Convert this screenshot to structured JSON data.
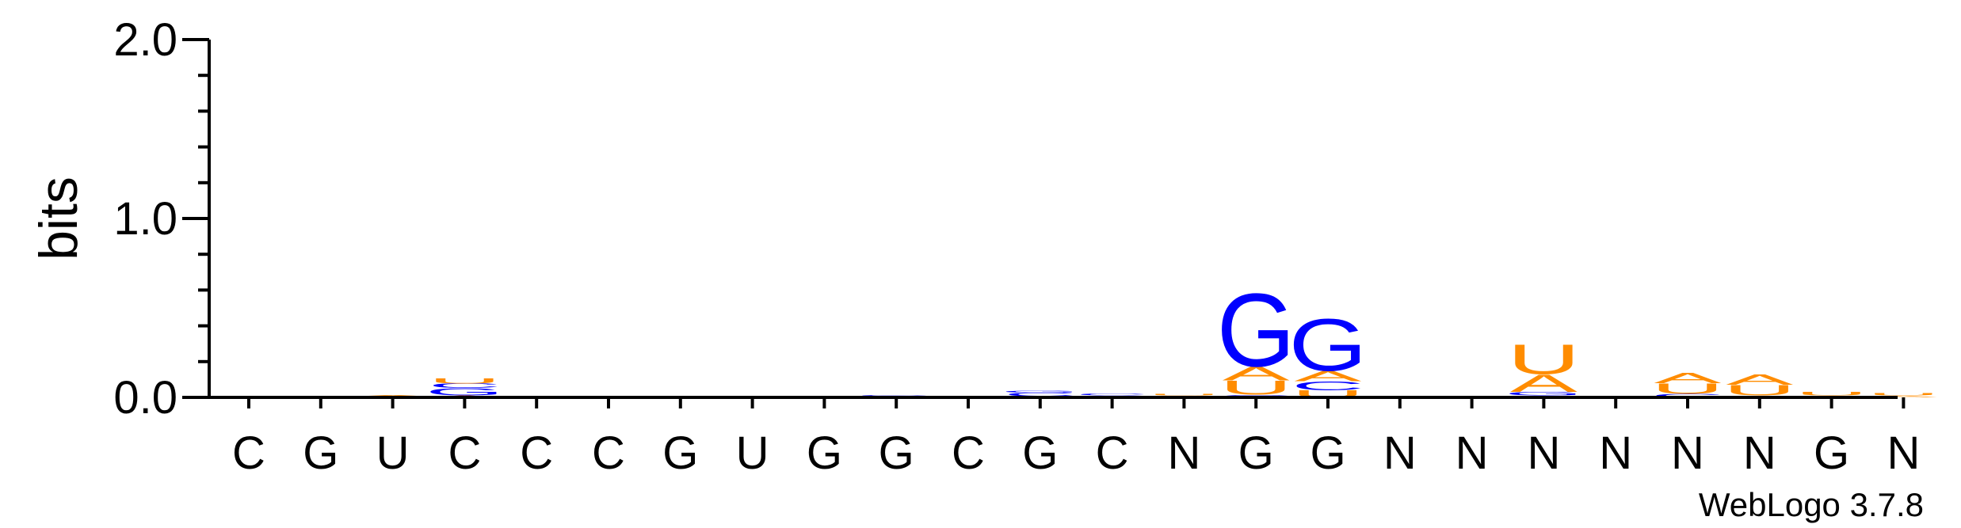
{
  "colors": {
    "A": "#ff8c00",
    "C": "#0000ff",
    "G": "#0000ff",
    "U": "#ff8c00",
    "axis": "#000000"
  },
  "chart_data": {
    "type": "sequence-logo",
    "ylabel": "bits",
    "ylim": [
      0,
      2.0
    ],
    "yticks": [
      {
        "value": 0.0,
        "label": "0.0"
      },
      {
        "value": 1.0,
        "label": "1.0"
      },
      {
        "value": 2.0,
        "label": "2.0"
      }
    ],
    "minor_tick_step": 0.2,
    "positions": [
      {
        "label": "C",
        "stack": [
          {
            "letter": "A",
            "bits": 0.002
          }
        ]
      },
      {
        "label": "G",
        "stack": []
      },
      {
        "label": "U",
        "stack": [
          {
            "letter": "U",
            "bits": 0.006
          },
          {
            "letter": "A",
            "bits": 0.006
          }
        ]
      },
      {
        "label": "C",
        "stack": [
          {
            "letter": "A",
            "bits": 0.012
          },
          {
            "letter": "G",
            "bits": 0.04
          },
          {
            "letter": "C",
            "bits": 0.025
          },
          {
            "letter": "U",
            "bits": 0.03
          }
        ]
      },
      {
        "label": "C",
        "stack": []
      },
      {
        "label": "C",
        "stack": []
      },
      {
        "label": "G",
        "stack": [
          {
            "letter": "A",
            "bits": 0.004
          }
        ]
      },
      {
        "label": "U",
        "stack": []
      },
      {
        "label": "G",
        "stack": [
          {
            "letter": "G",
            "bits": 0.004
          }
        ]
      },
      {
        "label": "G",
        "stack": [
          {
            "letter": "A",
            "bits": 0.004
          },
          {
            "letter": "G",
            "bits": 0.01
          }
        ]
      },
      {
        "label": "C",
        "stack": [
          {
            "letter": "G",
            "bits": 0.01
          }
        ]
      },
      {
        "label": "G",
        "stack": [
          {
            "letter": "A",
            "bits": 0.006
          },
          {
            "letter": "C",
            "bits": 0.02
          },
          {
            "letter": "G",
            "bits": 0.012
          }
        ]
      },
      {
        "label": "C",
        "stack": [
          {
            "letter": "G",
            "bits": 0.01
          },
          {
            "letter": "C",
            "bits": 0.012
          }
        ]
      },
      {
        "label": "N",
        "stack": [
          {
            "letter": "A",
            "bits": 0.01
          },
          {
            "letter": "U",
            "bits": 0.01
          }
        ]
      },
      {
        "label": "G",
        "stack": [
          {
            "letter": "C",
            "bits": 0.015
          },
          {
            "letter": "U",
            "bits": 0.08
          },
          {
            "letter": "A",
            "bits": 0.08
          },
          {
            "letter": "G",
            "bits": 0.42
          }
        ]
      },
      {
        "label": "G",
        "stack": [
          {
            "letter": "U",
            "bits": 0.04
          },
          {
            "letter": "C",
            "bits": 0.05
          },
          {
            "letter": "A",
            "bits": 0.06
          },
          {
            "letter": "G",
            "bits": 0.3
          }
        ]
      },
      {
        "label": "N",
        "stack": []
      },
      {
        "label": "N",
        "stack": []
      },
      {
        "label": "N",
        "stack": [
          {
            "letter": "C",
            "bits": 0.01
          },
          {
            "letter": "G",
            "bits": 0.02
          },
          {
            "letter": "A",
            "bits": 0.1
          },
          {
            "letter": "U",
            "bits": 0.17
          }
        ]
      },
      {
        "label": "N",
        "stack": []
      },
      {
        "label": "N",
        "stack": [
          {
            "letter": "C",
            "bits": 0.02
          },
          {
            "letter": "U",
            "bits": 0.06
          },
          {
            "letter": "A",
            "bits": 0.06
          }
        ]
      },
      {
        "label": "N",
        "stack": [
          {
            "letter": "C",
            "bits": 0.01
          },
          {
            "letter": "U",
            "bits": 0.06
          },
          {
            "letter": "A",
            "bits": 0.06
          }
        ]
      },
      {
        "label": "G",
        "stack": [
          {
            "letter": "G",
            "bits": 0.01
          },
          {
            "letter": "U",
            "bits": 0.02
          }
        ]
      },
      {
        "label": "N",
        "stack": [
          {
            "letter": "A",
            "bits": 0.01
          },
          {
            "letter": "U",
            "bits": 0.015
          }
        ]
      }
    ]
  },
  "credit": "WebLogo 3.7.8"
}
